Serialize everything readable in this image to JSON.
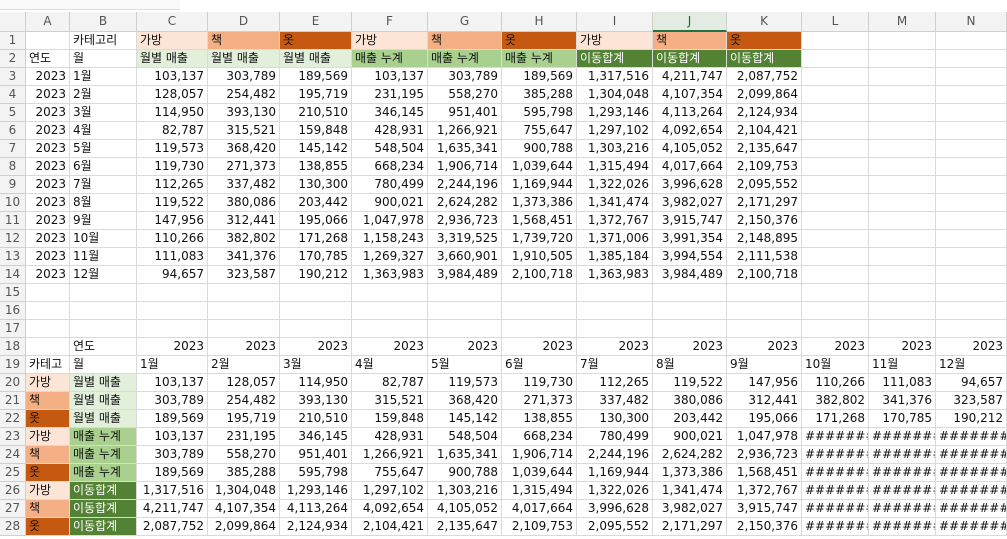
{
  "sheet": {
    "columns": [
      "A",
      "B",
      "C",
      "D",
      "E",
      "F",
      "G",
      "H",
      "I",
      "J",
      "K",
      "L",
      "M",
      "N"
    ],
    "row_numbers": [
      1,
      2,
      3,
      4,
      5,
      6,
      7,
      8,
      9,
      10,
      11,
      12,
      13,
      14,
      15,
      16,
      17,
      18,
      19,
      20,
      21,
      22,
      23,
      24,
      25,
      26,
      27,
      28
    ],
    "rows": [
      [
        null,
        "카테고리",
        "가방",
        "책",
        "옷",
        "가방",
        "책",
        "옷",
        "가방",
        "책",
        "옷",
        null,
        null,
        null
      ],
      [
        "연도",
        "월",
        "월별 매출",
        "월별 매출",
        "월별 매출",
        "매출 누계",
        "매출 누계",
        "매출 누계",
        "이동합계",
        "이동합계",
        "이동합계",
        null,
        null,
        null
      ],
      [
        "2023",
        "1월",
        "103,137",
        "303,789",
        "189,569",
        "103,137",
        "303,789",
        "189,569",
        "1,317,516",
        "4,211,747",
        "2,087,752",
        null,
        null,
        null
      ],
      [
        "2023",
        "2월",
        "128,057",
        "254,482",
        "195,719",
        "231,195",
        "558,270",
        "385,288",
        "1,304,048",
        "4,107,354",
        "2,099,864",
        null,
        null,
        null
      ],
      [
        "2023",
        "3월",
        "114,950",
        "393,130",
        "210,510",
        "346,145",
        "951,401",
        "595,798",
        "1,293,146",
        "4,113,264",
        "2,124,934",
        null,
        null,
        null
      ],
      [
        "2023",
        "4월",
        "82,787",
        "315,521",
        "159,848",
        "428,931",
        "1,266,921",
        "755,647",
        "1,297,102",
        "4,092,654",
        "2,104,421",
        null,
        null,
        null
      ],
      [
        "2023",
        "5월",
        "119,573",
        "368,420",
        "145,142",
        "548,504",
        "1,635,341",
        "900,788",
        "1,303,216",
        "4,105,052",
        "2,135,647",
        null,
        null,
        null
      ],
      [
        "2023",
        "6월",
        "119,730",
        "271,373",
        "138,855",
        "668,234",
        "1,906,714",
        "1,039,644",
        "1,315,494",
        "4,017,664",
        "2,109,753",
        null,
        null,
        null
      ],
      [
        "2023",
        "7월",
        "112,265",
        "337,482",
        "130,300",
        "780,499",
        "2,244,196",
        "1,169,944",
        "1,322,026",
        "3,996,628",
        "2,095,552",
        null,
        null,
        null
      ],
      [
        "2023",
        "8월",
        "119,522",
        "380,086",
        "203,442",
        "900,021",
        "2,624,282",
        "1,373,386",
        "1,341,474",
        "3,982,027",
        "2,171,297",
        null,
        null,
        null
      ],
      [
        "2023",
        "9월",
        "147,956",
        "312,441",
        "195,066",
        "1,047,978",
        "2,936,723",
        "1,568,451",
        "1,372,767",
        "3,915,747",
        "2,150,376",
        null,
        null,
        null
      ],
      [
        "2023",
        "10월",
        "110,266",
        "382,802",
        "171,268",
        "1,158,243",
        "3,319,525",
        "1,739,720",
        "1,371,006",
        "3,991,354",
        "2,148,895",
        null,
        null,
        null
      ],
      [
        "2023",
        "11월",
        "111,083",
        "341,376",
        "170,785",
        "1,269,327",
        "3,660,901",
        "1,910,505",
        "1,385,184",
        "3,994,554",
        "2,111,538",
        null,
        null,
        null
      ],
      [
        "2023",
        "12월",
        "94,657",
        "323,587",
        "190,212",
        "1,363,983",
        "3,984,489",
        "2,100,718",
        "1,363,983",
        "3,984,489",
        "2,100,718",
        null,
        null,
        null
      ],
      [
        null,
        null,
        null,
        null,
        null,
        null,
        null,
        null,
        null,
        null,
        null,
        null,
        null,
        null
      ],
      [
        null,
        null,
        null,
        null,
        null,
        null,
        null,
        null,
        null,
        null,
        null,
        null,
        null,
        null
      ],
      [
        null,
        null,
        null,
        null,
        null,
        null,
        null,
        null,
        null,
        null,
        null,
        null,
        null,
        null
      ],
      [
        null,
        "연도",
        "2023",
        "2023",
        "2023",
        "2023",
        "2023",
        "2023",
        "2023",
        "2023",
        "2023",
        "2023",
        "2023",
        "2023"
      ],
      [
        "카테고",
        "월",
        "1월",
        "2월",
        "3월",
        "4월",
        "5월",
        "6월",
        "7월",
        "8월",
        "9월",
        "10월",
        "11월",
        "12월"
      ],
      [
        "가방",
        "월별 매출",
        "103,137",
        "128,057",
        "114,950",
        "82,787",
        "119,573",
        "119,730",
        "112,265",
        "119,522",
        "147,956",
        "110,266",
        "111,083",
        "94,657"
      ],
      [
        "책",
        "월별 매출",
        "303,789",
        "254,482",
        "393,130",
        "315,521",
        "368,420",
        "271,373",
        "337,482",
        "380,086",
        "312,441",
        "382,802",
        "341,376",
        "323,587"
      ],
      [
        "옷",
        "월별 매출",
        "189,569",
        "195,719",
        "210,510",
        "159,848",
        "145,142",
        "138,855",
        "130,300",
        "203,442",
        "195,066",
        "171,268",
        "170,785",
        "190,212"
      ],
      [
        "가방",
        "매출 누계",
        "103,137",
        "231,195",
        "346,145",
        "428,931",
        "548,504",
        "668,234",
        "780,499",
        "900,021",
        "1,047,978",
        "#######",
        "#######",
        "#######"
      ],
      [
        "책",
        "매출 누계",
        "303,789",
        "558,270",
        "951,401",
        "1,266,921",
        "1,635,341",
        "1,906,714",
        "2,244,196",
        "2,624,282",
        "2,936,723",
        "#######",
        "#######",
        "#######"
      ],
      [
        "옷",
        "매출 누계",
        "189,569",
        "385,288",
        "595,798",
        "755,647",
        "900,788",
        "1,039,644",
        "1,169,944",
        "1,373,386",
        "1,568,451",
        "#######",
        "#######",
        "#######"
      ],
      [
        "가방",
        "이동합계",
        "1,317,516",
        "1,304,048",
        "1,293,146",
        "1,297,102",
        "1,303,216",
        "1,315,494",
        "1,322,026",
        "1,341,474",
        "1,372,767",
        "#######",
        "#######",
        "#######"
      ],
      [
        "책",
        "이동합계",
        "4,211,747",
        "4,107,354",
        "4,113,264",
        "4,092,654",
        "4,105,052",
        "4,017,664",
        "3,996,628",
        "3,982,027",
        "3,915,747",
        "#######",
        "#######",
        "#######"
      ],
      [
        "옷",
        "이동합계",
        "2,087,752",
        "2,099,864",
        "2,124,934",
        "2,104,421",
        "2,135,647",
        "2,109,753",
        "2,095,552",
        "2,171,297",
        "2,150,376",
        "#######",
        "#######",
        "#######"
      ]
    ]
  }
}
